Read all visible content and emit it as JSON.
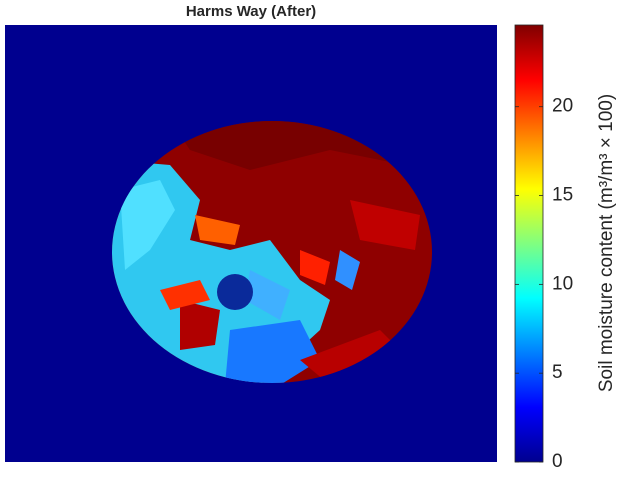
{
  "chart_data": {
    "type": "heatmap",
    "title": "Harms Way (After)",
    "colorbar_label": "Soil moisture content (m³/m³ × 100)",
    "clim": [
      0,
      24.6
    ],
    "cticks": [
      0,
      5,
      10,
      15,
      20
    ],
    "colormap": [
      "#00008f",
      "#0000ff",
      "#0080ff",
      "#00ffff",
      "#80ff80",
      "#ffff00",
      "#ff8000",
      "#ff0000",
      "#800000"
    ]
  }
}
